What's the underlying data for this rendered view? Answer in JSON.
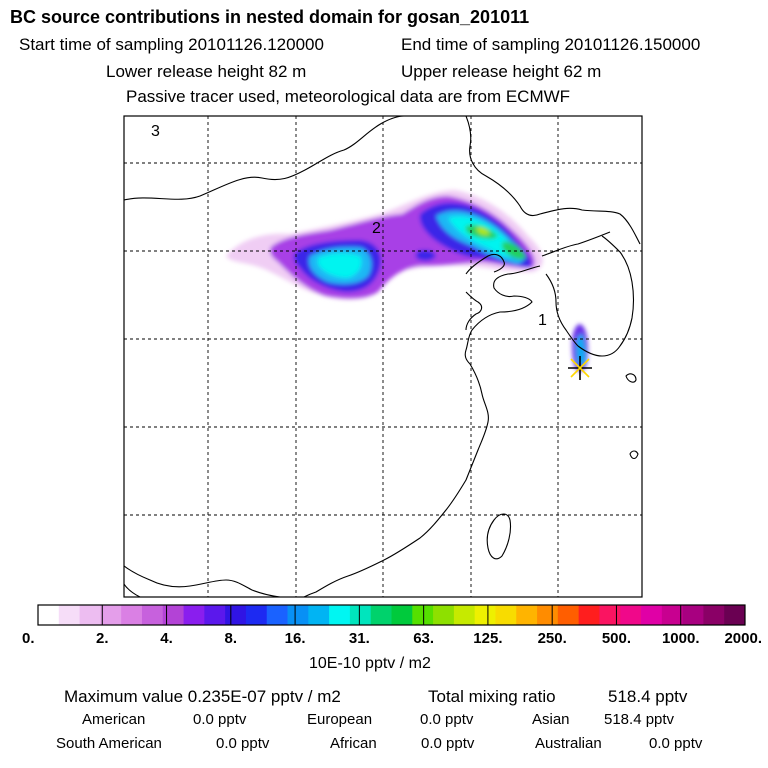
{
  "header": {
    "title": "BC  source contributions in nested domain for gosan_201011",
    "start_time": "Start time of sampling 20101126.120000",
    "end_time": "End time of sampling 20101126.150000",
    "lower_height": "Lower release height   82 m",
    "upper_height": "Upper release height   62 m",
    "tracer_info": "Passive tracer used, meteorological data are from ECMWF"
  },
  "colors": {
    "background": "#ffffff",
    "grid": "#000000",
    "coast": "#000000",
    "marker": "#ffd800",
    "palette": [
      "#ffffff",
      "#f6ddf8",
      "#edbdf1",
      "#e49eea",
      "#da80e4",
      "#c761dd",
      "#b343d6",
      "#8a1eee",
      "#5b18ec",
      "#3014e4",
      "#1d2af2",
      "#1a62ff",
      "#0890f5",
      "#01b4f3",
      "#00f6f2",
      "#00e5bd",
      "#00d26c",
      "#00ca3c",
      "#55e000",
      "#8ee000",
      "#c6ea00",
      "#eef000",
      "#f8dc00",
      "#ffb400",
      "#ff8c00",
      "#ff5e00",
      "#ff1e1e",
      "#fa1461",
      "#f0088a",
      "#e000a6",
      "#c80090",
      "#a80080",
      "#8a0066",
      "#6a0052"
    ]
  },
  "chart_data": {
    "type": "heatmap",
    "title": "BC  source contributions in nested domain for gosan_201011",
    "colorbar": {
      "ticks": [
        "0.",
        "2.",
        "4.",
        "8.",
        "16.",
        "31.",
        "63.",
        "125.",
        "250.",
        "500.",
        "1000.",
        "2000."
      ],
      "unit_label": "10E-10 pptv / m2",
      "scale": "logarithmic"
    },
    "map_labels": [
      "1",
      "2",
      "3"
    ],
    "receptor": "gosan",
    "max_value": "0.235E-07",
    "max_value_unit": "pptv / m2",
    "total_mixing_ratio": "518.4",
    "total_unit": "pptv"
  },
  "stats": {
    "max_label": "Maximum value  0.235E-07 pptv / m2",
    "total_label": "Total mixing ratio",
    "total_value": "518.4 pptv",
    "regions": [
      {
        "name": "American",
        "value": "0.0 pptv"
      },
      {
        "name": "European",
        "value": "0.0 pptv"
      },
      {
        "name": "Asian",
        "value": "518.4 pptv"
      },
      {
        "name": "South American",
        "value": "0.0 pptv"
      },
      {
        "name": "African",
        "value": "0.0 pptv"
      },
      {
        "name": "Australian",
        "value": "0.0 pptv"
      }
    ]
  }
}
